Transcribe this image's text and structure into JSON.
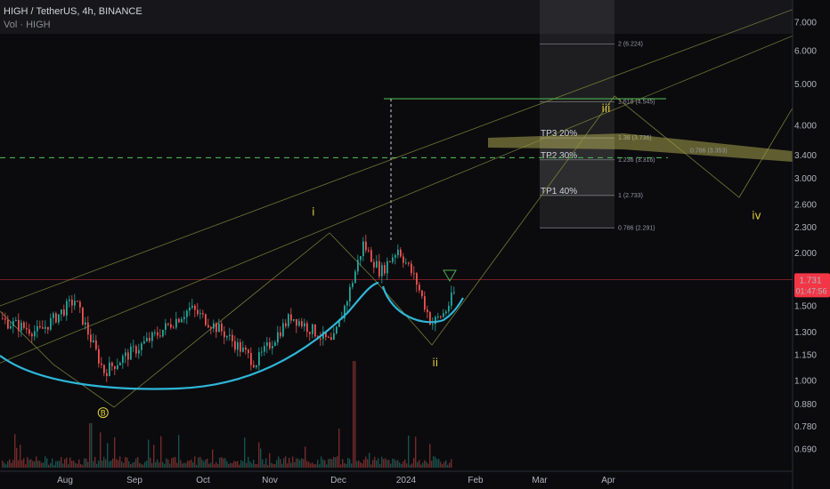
{
  "header": {
    "symbol_line": "HIGH / TetherUS, 4h, BINANCE",
    "volume_line": "Vol · HIGH"
  },
  "colors": {
    "background": "#0b0b0e",
    "up_candle": "#26a69a",
    "down_candle": "#ef5350",
    "cup_curve": "#2fb6d8",
    "channel_line": "#8f9a3e",
    "fib_line": "#9aa0a6",
    "target_green": "#4caf50",
    "highlight_band": "#c8c35a",
    "wave_label": "#e8d23c",
    "price_tag": "#f23645"
  },
  "chart_data": {
    "type": "candlestick",
    "symbol": "HIGH / TetherUS",
    "interval": "4h",
    "exchange": "BINANCE",
    "y_scale": "log",
    "ylim": [
      0.62,
      7.6
    ],
    "x_ticks": [
      "Aug",
      "Sep",
      "Oct",
      "Nov",
      "Dec",
      "2024",
      "Feb",
      "Mar",
      "Apr"
    ],
    "y_ticks": [
      "7.000",
      "6.000",
      "5.000",
      "4.000",
      "3.400",
      "3.000",
      "2.600",
      "2.300",
      "2.000",
      "1.500",
      "1.300",
      "1.150",
      "1.000",
      "0.880",
      "0.780",
      "0.690"
    ],
    "last_price": "1.731",
    "countdown": "01:47:56",
    "price_path_points": [
      {
        "date": "2023-07-01",
        "price": 1.4
      },
      {
        "date": "2023-07-20",
        "price": 1.3
      },
      {
        "date": "2023-08-05",
        "price": 1.55
      },
      {
        "date": "2023-08-18",
        "price": 1.05
      },
      {
        "date": "2023-09-10",
        "price": 1.28
      },
      {
        "date": "2023-09-25",
        "price": 1.48
      },
      {
        "date": "2023-10-10",
        "price": 1.3
      },
      {
        "date": "2023-10-25",
        "price": 1.1
      },
      {
        "date": "2023-11-10",
        "price": 1.42
      },
      {
        "date": "2023-11-28",
        "price": 1.22
      },
      {
        "date": "2023-12-05",
        "price": 1.58
      },
      {
        "date": "2023-12-12",
        "price": 2.1
      },
      {
        "date": "2023-12-20",
        "price": 1.8
      },
      {
        "date": "2023-12-28",
        "price": 2.05
      },
      {
        "date": "2024-01-05",
        "price": 1.72
      },
      {
        "date": "2024-01-12",
        "price": 1.36
      },
      {
        "date": "2024-01-18",
        "price": 1.45
      },
      {
        "date": "2024-01-25",
        "price": 1.73
      }
    ],
    "fib_levels": [
      {
        "label": "2 (6.224)",
        "price": 6.224
      },
      {
        "label": "1.618 (4.545)",
        "price": 4.545
      },
      {
        "label": "1.38 (3.736)",
        "price": 3.736
      },
      {
        "label": "1.236 (3.316)",
        "price": 3.316
      },
      {
        "label": "1 (2.733)",
        "price": 2.733
      },
      {
        "label": "0.786 (2.291)",
        "price": 2.291
      }
    ],
    "fib_side_label": "0.786 (3.353)",
    "targets": [
      {
        "label": "TP3 20%",
        "price": 3.736
      },
      {
        "label": "TP2 30%",
        "price": 3.316
      },
      {
        "label": "TP1 40%",
        "price": 2.733
      }
    ],
    "wave_labels": [
      {
        "label": "B",
        "date": "2023-08-18",
        "price": 0.84
      },
      {
        "label": "i",
        "date": "2023-11-20",
        "price": 2.45
      },
      {
        "label": "ii",
        "date": "2024-01-14",
        "price": 1.08
      },
      {
        "label": "iii",
        "date": "2024-03-31",
        "price": 4.3
      },
      {
        "label": "iv",
        "date": "2024-06-07",
        "price": 2.4
      }
    ],
    "dashed_support": 3.353,
    "target_line": 4.62
  }
}
